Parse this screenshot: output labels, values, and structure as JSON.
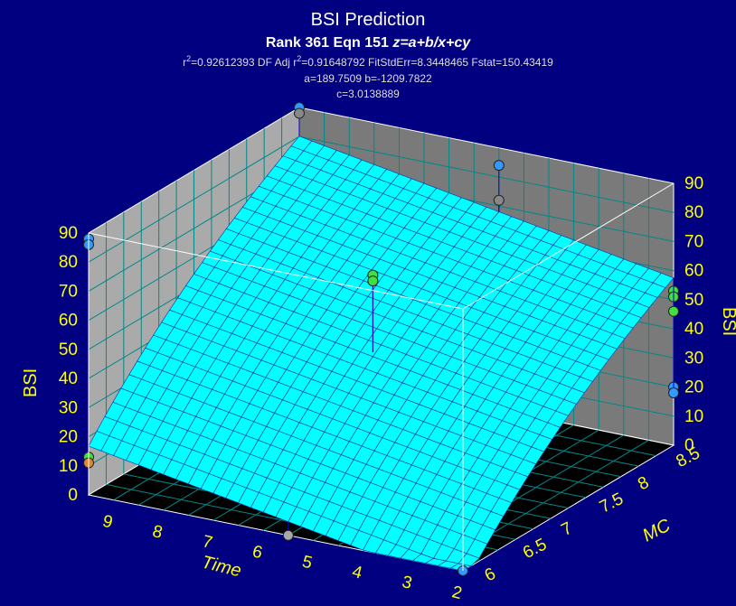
{
  "chart_data": {
    "type": "surface3d",
    "title": "BSI Prediction",
    "subtitle_prefix": "Rank 361  Eqn 151  ",
    "subtitle_eqn": "z=a+b/x+cy",
    "stats": {
      "r2_base": "r",
      "r2_sup": "2",
      "r2_value": "=0.92612393  DF Adj r",
      "adj_sup": "2",
      "adj_value": "=0.91648792  FitStdErr=8.3448465  Fstat=150.43419"
    },
    "params_line1": "a=189.7509 b=-1209.7822",
    "params_line2": "c=3.0138889",
    "coefficients": {
      "a": 189.7509,
      "b": -1209.7822,
      "c": 3.0138889
    },
    "x_axis": {
      "label": "MC",
      "range": [
        6,
        8.75
      ],
      "ticks": [
        "6",
        "6.5",
        "7",
        "7.5",
        "8",
        "8.5"
      ]
    },
    "y_axis": {
      "label": "Time",
      "range": [
        2,
        9.5
      ],
      "ticks": [
        "2",
        "3",
        "4",
        "5",
        "6",
        "7",
        "8",
        "9"
      ]
    },
    "z_axis": {
      "label": "BSI",
      "range": [
        0,
        90
      ],
      "ticks": [
        "0",
        "10",
        "20",
        "30",
        "40",
        "50",
        "60",
        "70",
        "80",
        "90"
      ]
    },
    "points": [
      {
        "x": 6.0,
        "y": 2,
        "z": 0,
        "color": "#3399ff"
      },
      {
        "x": 6.0,
        "y": 5.5,
        "z": 0,
        "color": "#aaaaaa"
      },
      {
        "x": 6.0,
        "y": 9.5,
        "z": 13,
        "color": "#44dd44"
      },
      {
        "x": 6.0,
        "y": 9.5,
        "z": 11,
        "color": "#dd8833"
      },
      {
        "x": 6.0,
        "y": 9.5,
        "z": 88,
        "color": "#3399ff"
      },
      {
        "x": 6.0,
        "y": 9.5,
        "z": 86,
        "color": "#3399ff"
      },
      {
        "x": 7.3,
        "y": 5.8,
        "z": 68,
        "color": "#44dd44"
      },
      {
        "x": 7.3,
        "y": 5.8,
        "z": 66,
        "color": "#44dd44"
      },
      {
        "x": 8.75,
        "y": 9.5,
        "z": 90,
        "color": "#3399ff"
      },
      {
        "x": 8.75,
        "y": 9.5,
        "z": 88,
        "color": "#888888"
      },
      {
        "x": 8.75,
        "y": 2,
        "z": 20,
        "color": "#3399ff"
      },
      {
        "x": 8.75,
        "y": 2,
        "z": 18,
        "color": "#3399ff"
      },
      {
        "x": 8.75,
        "y": 5.5,
        "z": 84,
        "color": "#3399ff"
      },
      {
        "x": 8.75,
        "y": 5.5,
        "z": 72,
        "color": "#888888"
      },
      {
        "x": 8.75,
        "y": 2,
        "z": 53,
        "color": "#44dd44"
      },
      {
        "x": 8.75,
        "y": 2,
        "z": 51,
        "color": "#44dd44"
      },
      {
        "x": 8.75,
        "y": 2,
        "z": 46,
        "color": "#44dd44"
      }
    ],
    "colors": {
      "background": "#000080",
      "surface": "#00ffff",
      "mesh": "#0033aa",
      "wall": "#aaaaaa",
      "wall_dark": "#7a7a7a",
      "floor": "#000000",
      "floor_grid": "#008888",
      "text": "#ffff00"
    }
  }
}
